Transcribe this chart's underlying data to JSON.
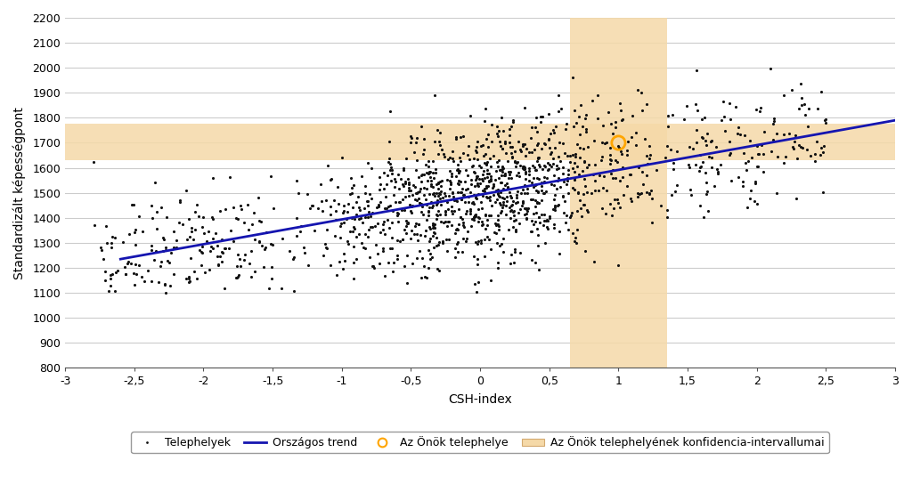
{
  "title": "",
  "xlabel": "CSH-index",
  "ylabel": "Standardizált képességpont",
  "xlim": [
    -3,
    3
  ],
  "ylim": [
    800,
    2200
  ],
  "xticks": [
    -3,
    -2.5,
    -2,
    -1.5,
    -1,
    -0.5,
    0,
    0.5,
    1,
    1.5,
    2,
    2.5,
    3
  ],
  "yticks": [
    800,
    900,
    1000,
    1100,
    1200,
    1300,
    1400,
    1500,
    1600,
    1700,
    1800,
    1900,
    2000,
    2100,
    2200
  ],
  "trend_x": [
    -2.6,
    3.0
  ],
  "trend_y": [
    1235,
    1790
  ],
  "trend_color": "#1515b0",
  "scatter_color": "#111111",
  "scatter_size": 5,
  "conf_x_min": 0.65,
  "conf_x_max": 1.35,
  "conf_y_min": 800,
  "conf_y_max": 2200,
  "conf_h_y_min": 1630,
  "conf_h_y_max": 1775,
  "conf_color": "#f5d9a8",
  "conf_alpha": 0.85,
  "highlight_x": 1.0,
  "highlight_y": 1700,
  "highlight_color": "#FFA500",
  "highlight_size": 120,
  "bg_color": "#ffffff",
  "plot_bg_color": "#ffffff",
  "grid_color": "#cccccc",
  "legend_items": [
    "Telephelyek",
    "Országos trend",
    "Az Önök telephelye",
    "Az Önök telephelyének konfidencia-intervallumai"
  ],
  "seed": 42,
  "n_points": 1500
}
